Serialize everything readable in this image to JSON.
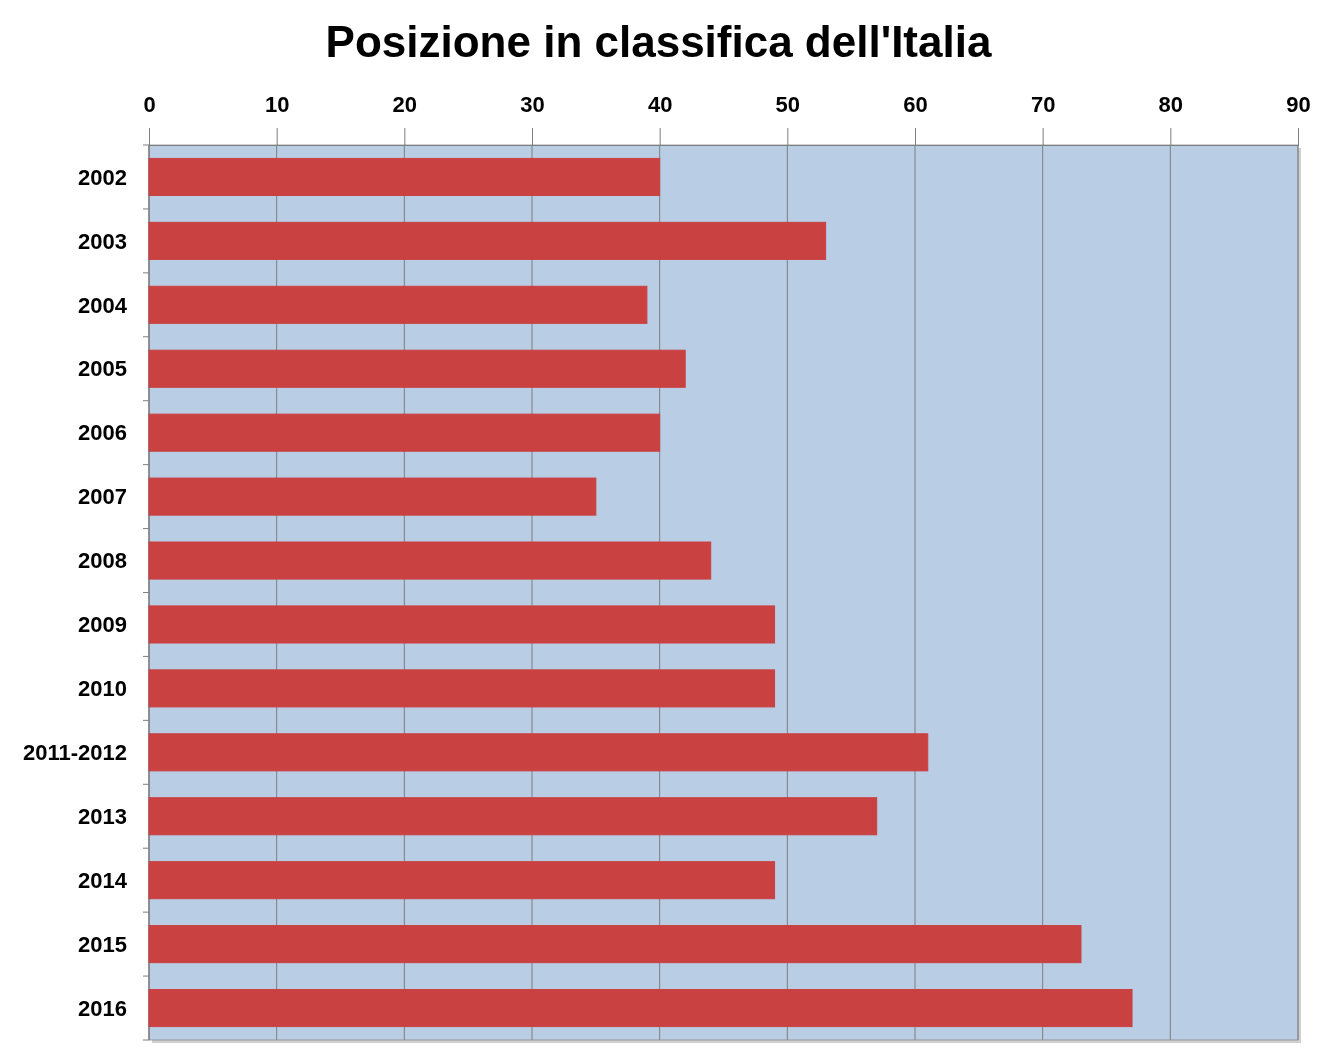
{
  "chart_data": {
    "type": "bar",
    "orientation": "horizontal",
    "title": "Posizione in classifica dell'Italia",
    "categories": [
      "2002",
      "2003",
      "2004",
      "2005",
      "2006",
      "2007",
      "2008",
      "2009",
      "2010",
      "2011-2012",
      "2013",
      "2014",
      "2015",
      "2016"
    ],
    "values": [
      40,
      53,
      39,
      42,
      40,
      35,
      44,
      49,
      49,
      61,
      57,
      49,
      73,
      77
    ],
    "color": "#c94141",
    "xlim": [
      0,
      90
    ],
    "xticks": [
      0,
      10,
      20,
      30,
      40,
      50,
      60,
      70,
      80,
      90
    ],
    "grid": "x"
  }
}
